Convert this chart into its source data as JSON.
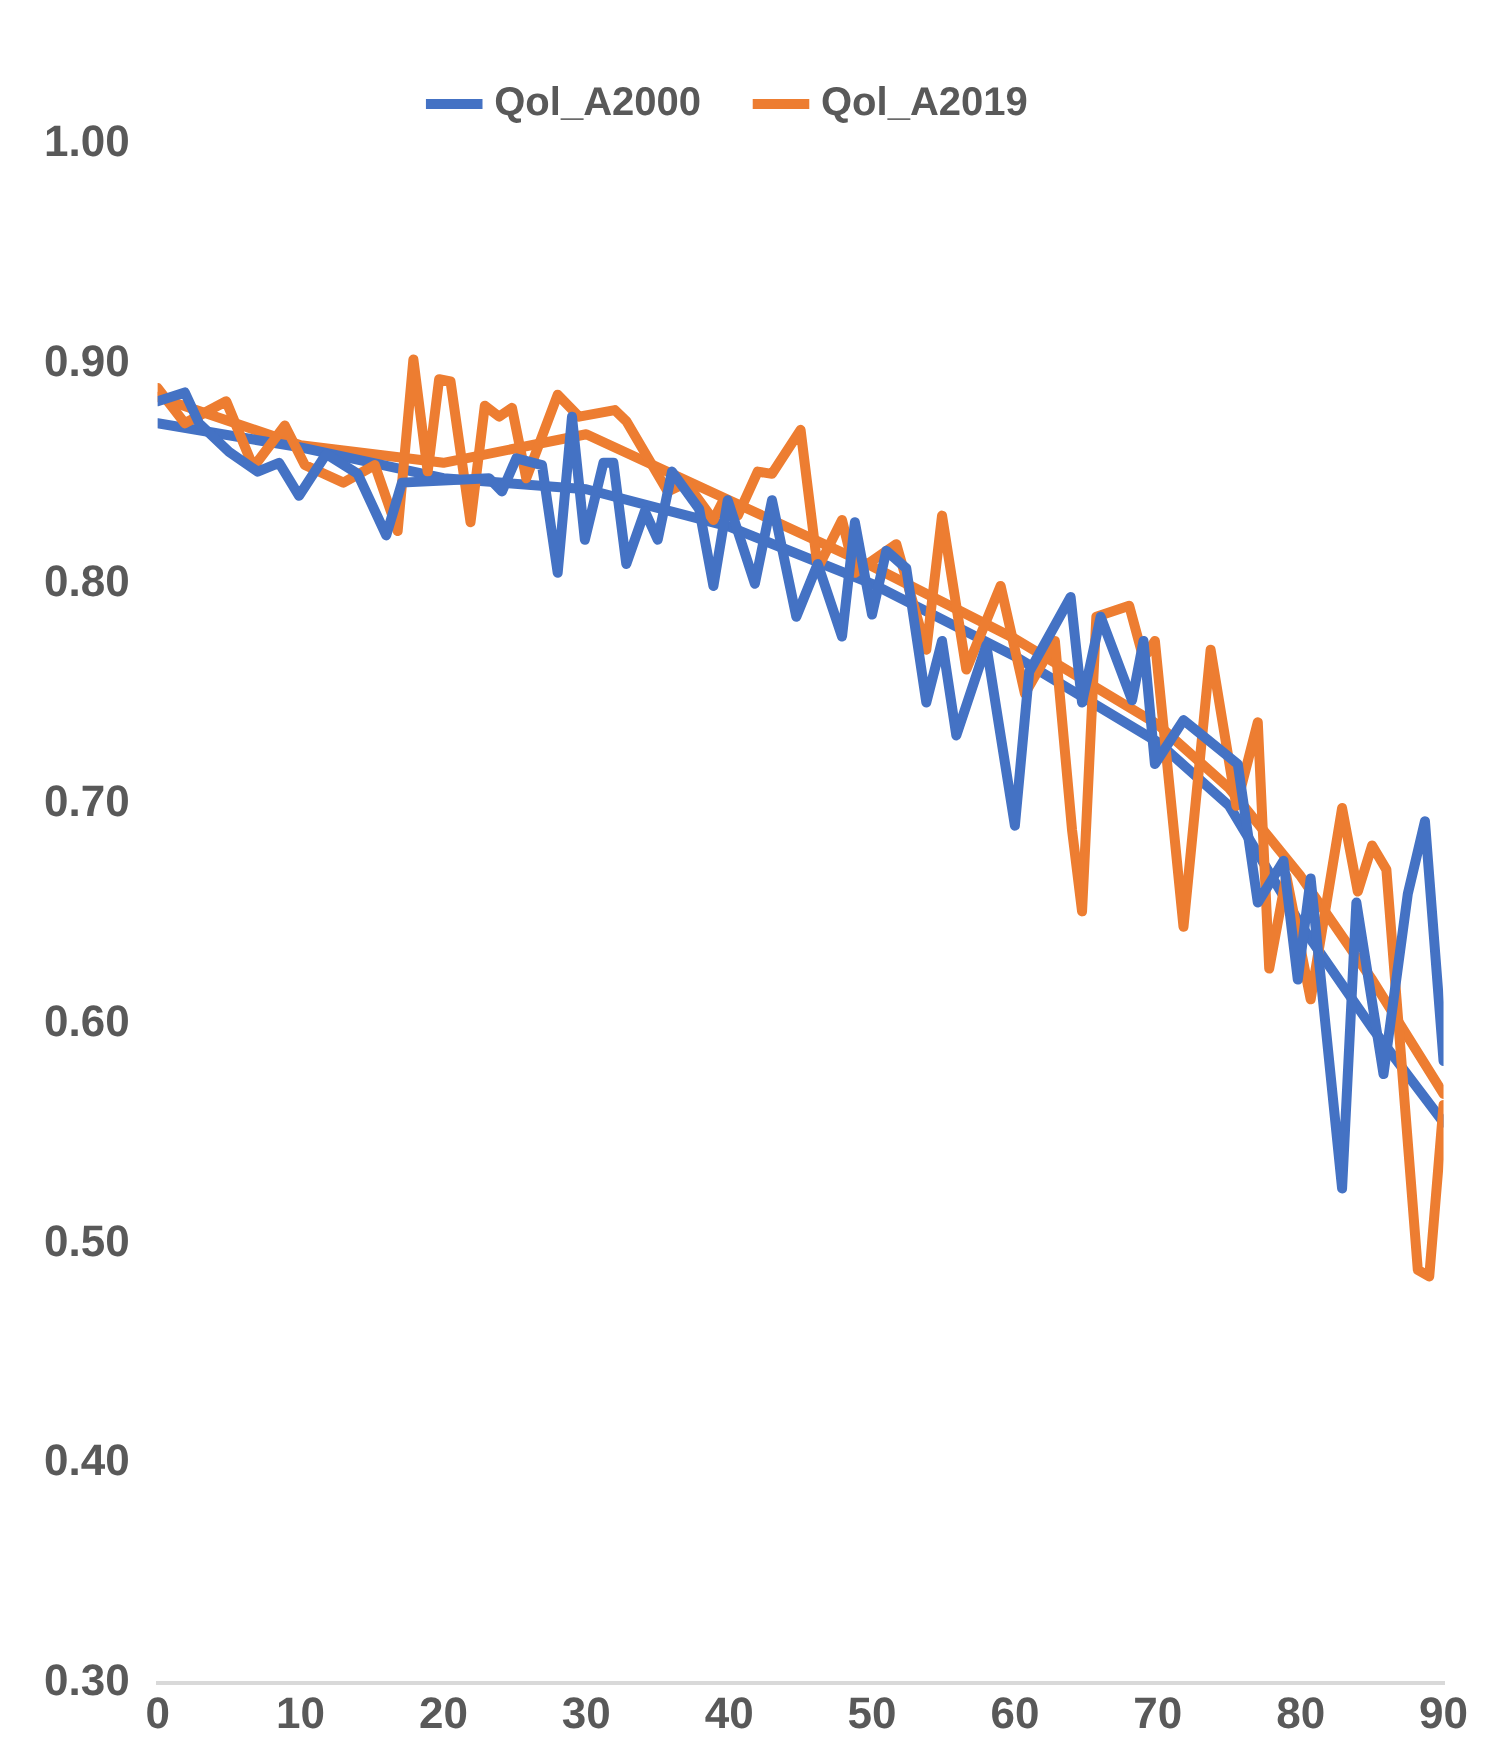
{
  "chart_data": {
    "type": "line",
    "series": [
      {
        "name": "Qol_A2000",
        "color": "#4472c4",
        "x": [
          0,
          1.9,
          2.9,
          5,
          7,
          8.5,
          9.9,
          11.8,
          14,
          16,
          17.1,
          20,
          23.2,
          24.1,
          25.1,
          26.9,
          28,
          29,
          29.9,
          31.2,
          31.9,
          32.8,
          34.1,
          35,
          36,
          37.9,
          38.9,
          39.9,
          41.8,
          43,
          44.7,
          46.2,
          47.9,
          48.8,
          50,
          51,
          52.4,
          53.8,
          54.9,
          55.9,
          58,
          60,
          61,
          63.9,
          64.7,
          66,
          68.2,
          69,
          69.8,
          71.8,
          75.6,
          77,
          78.8,
          79.8,
          80.7,
          82.9,
          83.9,
          85.8,
          87.5,
          88.7,
          90
        ],
        "values": [
          0.883,
          0.887,
          0.873,
          0.86,
          0.851,
          0.855,
          0.84,
          0.859,
          0.85,
          0.822,
          0.846,
          0.847,
          0.848,
          0.842,
          0.857,
          0.854,
          0.805,
          0.876,
          0.82,
          0.855,
          0.855,
          0.809,
          0.833,
          0.82,
          0.851,
          0.834,
          0.799,
          0.838,
          0.8,
          0.838,
          0.785,
          0.809,
          0.776,
          0.828,
          0.786,
          0.815,
          0.807,
          0.746,
          0.774,
          0.731,
          0.772,
          0.69,
          0.76,
          0.794,
          0.746,
          0.785,
          0.747,
          0.774,
          0.718,
          0.738,
          0.718,
          0.655,
          0.674,
          0.62,
          0.666,
          0.525,
          0.655,
          0.577,
          0.659,
          0.692,
          0.583
        ]
      },
      {
        "name": "Qol_A2019",
        "color": "#ed7d31",
        "x": [
          0,
          1.9,
          4.8,
          6.7,
          8.9,
          10.3,
          13,
          15.2,
          16.8,
          17.9,
          18.9,
          19.7,
          20.5,
          21.9,
          22.9,
          23.9,
          24.8,
          25.8,
          28,
          29.5,
          32,
          32.8,
          35.7,
          37,
          38.9,
          39.6,
          40.6,
          42,
          43,
          45,
          46.2,
          47.9,
          48.8,
          51.7,
          53.8,
          54.9,
          56.6,
          59,
          60.7,
          62.8,
          64,
          64.7,
          65.7,
          68,
          69,
          69.8,
          71.8,
          73.7,
          75.5,
          77,
          77.8,
          79,
          80.7,
          82.9,
          84,
          85,
          86,
          88.2,
          89,
          90
        ],
        "values": [
          0.889,
          0.873,
          0.883,
          0.853,
          0.872,
          0.854,
          0.846,
          0.854,
          0.824,
          0.902,
          0.851,
          0.893,
          0.892,
          0.828,
          0.881,
          0.876,
          0.88,
          0.848,
          0.886,
          0.876,
          0.879,
          0.874,
          0.842,
          0.846,
          0.829,
          0.838,
          0.831,
          0.851,
          0.85,
          0.87,
          0.807,
          0.829,
          0.805,
          0.818,
          0.77,
          0.831,
          0.761,
          0.799,
          0.75,
          0.774,
          0.688,
          0.651,
          0.785,
          0.79,
          0.766,
          0.774,
          0.644,
          0.77,
          0.699,
          0.737,
          0.625,
          0.667,
          0.611,
          0.698,
          0.66,
          0.681,
          0.67,
          0.488,
          0.485,
          0.563
        ]
      },
      {
        "type": "line",
        "color": "#4472c4",
        "x": [
          0,
          10,
          20,
          30,
          40,
          50,
          60,
          70,
          75,
          80,
          85,
          90
        ],
        "values": [
          0.873,
          0.862,
          0.848,
          0.843,
          0.826,
          0.8,
          0.767,
          0.728,
          0.699,
          0.645,
          0.598,
          0.555
        ]
      },
      {
        "type": "line",
        "color": "#ed7d31",
        "x": [
          0,
          10,
          20,
          30,
          40,
          50,
          60,
          70,
          75,
          80,
          85,
          90
        ],
        "values": [
          0.885,
          0.863,
          0.855,
          0.868,
          0.838,
          0.808,
          0.775,
          0.736,
          0.707,
          0.667,
          0.62,
          0.568
        ]
      }
    ],
    "xlim": [
      0,
      90
    ],
    "xticks": [
      0,
      10,
      20,
      30,
      40,
      50,
      60,
      70,
      80,
      90
    ],
    "ylim": [
      0.3,
      1.0
    ],
    "yticks": [
      {
        "value": 0.3,
        "label": "0.30"
      },
      {
        "value": 0.4,
        "label": "0.40"
      },
      {
        "value": 0.5,
        "label": "0.50"
      },
      {
        "value": 0.6,
        "label": "0.60"
      },
      {
        "value": 0.7,
        "label": "0.70"
      },
      {
        "value": 0.8,
        "label": "0.80"
      },
      {
        "value": 0.9,
        "label": "0.90"
      },
      {
        "value": 1.0,
        "label": "1.00"
      }
    ],
    "grid": false,
    "legend": "top",
    "marker": "none",
    "line_style": "solid"
  }
}
